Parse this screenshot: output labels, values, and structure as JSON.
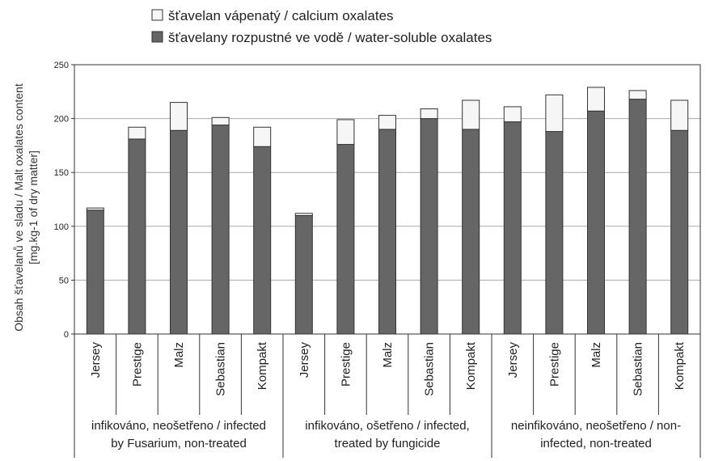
{
  "chart_data": {
    "type": "bar",
    "stacked": true,
    "ylim": [
      0,
      250
    ],
    "yticks": [
      0,
      50,
      100,
      150,
      200,
      250
    ],
    "grid": true,
    "legend_position": "top",
    "ylabel_lines": [
      "Obsah šťavelanů ve sladu / Malt oxalates content",
      "[mg.kg-1 of dry matter]"
    ],
    "categories": [
      "Jersey",
      "Prestige",
      "Malz",
      "Sebastian",
      "Kompakt",
      "Jersey",
      "Prestige",
      "Malz",
      "Sebastian",
      "Kompakt",
      "Jersey",
      "Prestige",
      "Malz",
      "Sebastian",
      "Kompakt"
    ],
    "groups": [
      {
        "lines": [
          "infikováno, neošetřeno / infected",
          "by Fusarium, non-treated"
        ],
        "start": 0,
        "count": 5
      },
      {
        "lines": [
          "infikováno, ošetřeno / infected,",
          "treated by fungicide"
        ],
        "start": 5,
        "count": 5
      },
      {
        "lines": [
          "neinfikováno, neošetřeno / non-",
          "infected, non-treated"
        ],
        "start": 10,
        "count": 5
      }
    ],
    "series": [
      {
        "name": "šťavelany rozpustné ve vodě / water-soluble oxalates",
        "color": "#666666",
        "values": [
          115,
          181,
          189,
          194,
          174,
          110,
          176,
          190,
          200,
          190,
          197,
          188,
          207,
          218,
          189
        ]
      },
      {
        "name": "šťavelan vápenatý / calcium oxalates",
        "color": "#f6f6f6",
        "values": [
          2,
          11,
          26,
          7,
          18,
          2,
          23,
          13,
          9,
          27,
          14,
          34,
          22,
          8,
          28
        ]
      }
    ],
    "legend_order": [
      1,
      0
    ]
  }
}
